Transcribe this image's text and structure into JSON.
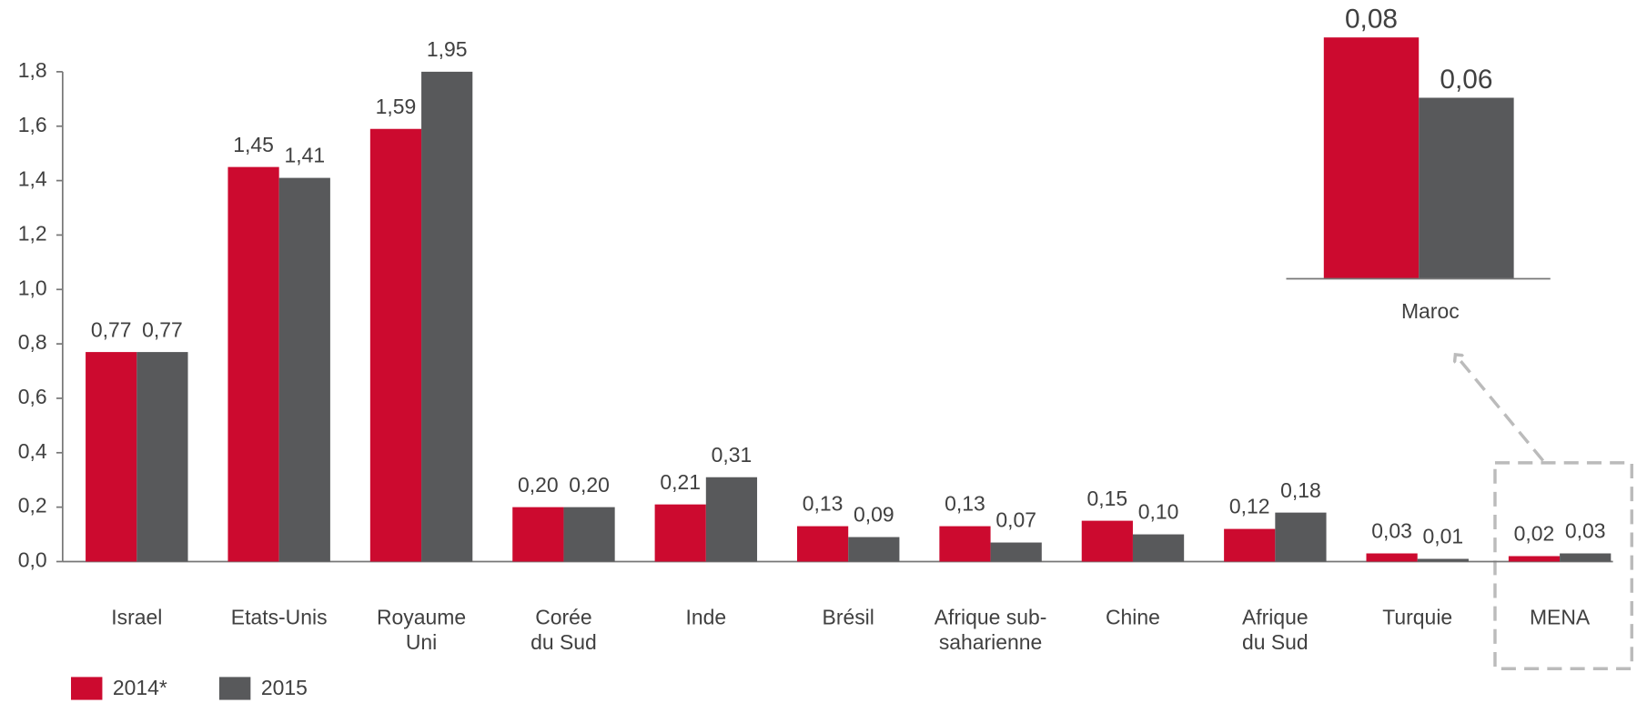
{
  "chart_data": [
    {
      "type": "bar",
      "categories": [
        "Israel",
        "Etats-Unis",
        "Royaume\nUni",
        "Corée\ndu Sud",
        "Inde",
        "Brésil",
        "Afrique sub-\nsaharienne",
        "Chine",
        "Afrique\ndu Sud",
        "Turquie",
        "MENA"
      ],
      "series": [
        {
          "name": "2014*",
          "color": "#cc0a2f",
          "values": [
            0.77,
            1.45,
            1.59,
            0.2,
            0.21,
            0.13,
            0.13,
            0.15,
            0.12,
            0.03,
            0.02
          ],
          "value_labels": [
            "0,77",
            "1,45",
            "1,59",
            "0,20",
            "0,21",
            "0,13",
            "0,13",
            "0,15",
            "0,12",
            "0,03",
            "0,02"
          ]
        },
        {
          "name": "2015",
          "color": "#58595b",
          "values": [
            0.77,
            1.41,
            1.95,
            0.2,
            0.31,
            0.09,
            0.07,
            0.1,
            0.18,
            0.01,
            0.03
          ],
          "value_labels": [
            "0,77",
            "1,41",
            "1,95",
            "0,20",
            "0,31",
            "0,09",
            "0,07",
            "0,10",
            "0,18",
            "0,01",
            "0,03"
          ]
        }
      ],
      "ylim": [
        0,
        1.8
      ],
      "yticks": [
        {
          "value": 0,
          "label": "0,0"
        },
        {
          "value": 0.2,
          "label": "0,2"
        },
        {
          "value": 0.4,
          "label": "0,4"
        },
        {
          "value": 0.6,
          "label": "0,6"
        },
        {
          "value": 0.8,
          "label": "0,8"
        },
        {
          "value": 1.0,
          "label": "1,0"
        },
        {
          "value": 1.2,
          "label": "1,2"
        },
        {
          "value": 1.4,
          "label": "1,4"
        },
        {
          "value": 1.6,
          "label": "1,6"
        },
        {
          "value": 1.8,
          "label": "1,8"
        }
      ],
      "legend": "bottom-left"
    },
    {
      "type": "bar",
      "categories": [
        "Maroc"
      ],
      "series": [
        {
          "color": "#cc0a2f",
          "values": [
            0.08
          ],
          "value_labels": [
            "0,08"
          ]
        },
        {
          "color": "#58595b",
          "values": [
            0.06
          ],
          "value_labels": [
            "0,06"
          ]
        }
      ]
    }
  ]
}
